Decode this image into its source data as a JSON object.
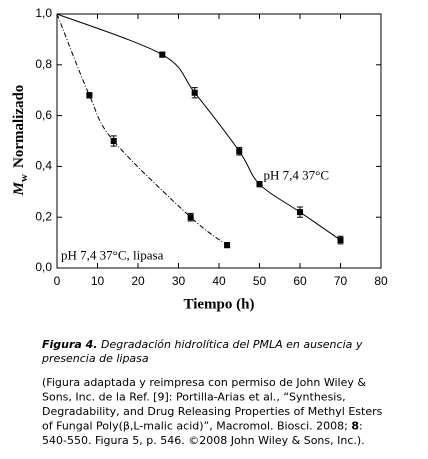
{
  "chart_data": {
    "type": "line",
    "x_label": "Tiempo (h)",
    "y_label": {
      "symbol": "M",
      "subscript": "w",
      "text": "Normalizado"
    },
    "xlim": [
      0,
      80
    ],
    "xticks": [
      0,
      10,
      20,
      30,
      40,
      50,
      60,
      70,
      80
    ],
    "ylim": [
      0,
      1.0
    ],
    "yticks": [
      {
        "value": 0,
        "label": "0,0"
      },
      {
        "value": 0.2,
        "label": "0,2"
      },
      {
        "value": 0.4,
        "label": "0,4"
      },
      {
        "value": 0.6,
        "label": "0,6"
      },
      {
        "value": 0.8,
        "label": "0,8"
      },
      {
        "value": 1.0,
        "label": "1,0"
      }
    ],
    "series": [
      {
        "x": [
          0,
          26,
          34,
          45,
          50,
          60,
          70
        ],
        "values": [
          1.0,
          0.84,
          0.69,
          0.46,
          0.33,
          0.22,
          0.11
        ],
        "errors": [
          0,
          0.01,
          0.02,
          0.015,
          0.01,
          0.02,
          0.015
        ],
        "color": "#000000",
        "dash": "solid"
      },
      {
        "x": [
          0,
          8,
          14,
          33,
          42
        ],
        "values": [
          1.0,
          0.68,
          0.5,
          0.2,
          0.09
        ],
        "errors": [
          0,
          0.01,
          0.02,
          0.015,
          0.01
        ],
        "color": "#000000",
        "dash": "dashdot"
      }
    ],
    "annotations": [
      {
        "text": "pH 7,4  37°C",
        "x": 51,
        "y": 0.36
      },
      {
        "text": "pH 7,4  37°C, lipasa",
        "x": 1,
        "y": 0.045
      }
    ]
  },
  "caption": {
    "label": "Figura 4.",
    "title_lines": [
      " Degradación hidrolítica del PMLA en ausencia y",
      "presencia de lipasa"
    ],
    "body_lines": [
      [
        {
          "text": "(Figura adaptada y reimpresa con permiso de John Wiley &"
        }
      ],
      [
        {
          "text": "Sons, Inc. de la Ref. [9]: Portilla-Arias et al., “Synthesis,"
        }
      ],
      [
        {
          "text": "Degradability, and Drug Releasing Properties of Methyl Esters"
        }
      ],
      [
        {
          "text": "of Fungal Poly(β,L-malic acid)”, Macromol. Biosci. 2008; "
        },
        {
          "text": "8",
          "bold": true
        },
        {
          "text": ":"
        }
      ],
      [
        {
          "text": "540-550. Figura 5, p. 546. ©2008 John Wiley & Sons, Inc.)."
        }
      ]
    ]
  }
}
